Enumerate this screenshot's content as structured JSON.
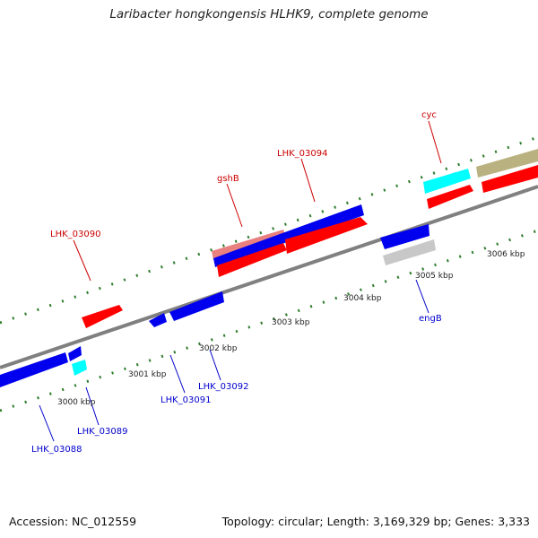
{
  "title": "Laribacter hongkongensis HLHK9, complete genome",
  "footer": {
    "accession": "Accession: NC_012559",
    "summary": "Topology: circular; Length: 3,169,329 bp; Genes: 3,333"
  },
  "colors": {
    "backbone": "#808080",
    "tick": "#2e7d2e",
    "red": "#ff0000",
    "blue": "#0000ee",
    "cyan": "#00ffff",
    "gray": "#c8c8c8",
    "olive": "#b9b280",
    "pink": "#e88080",
    "label_red": "#cc0000",
    "label_blue": "#0000cc"
  },
  "scale_labels": [
    "3000 kbp",
    "3001 kbp",
    "3002 kbp",
    "3003 kbp",
    "3004 kbp",
    "3005 kbp",
    "3006 kbp"
  ],
  "gene_labels": [
    {
      "text": "LHK_03090",
      "color": "red"
    },
    {
      "text": "gshB",
      "color": "red"
    },
    {
      "text": "LHK_03094",
      "color": "red"
    },
    {
      "text": "cyc",
      "color": "red"
    },
    {
      "text": "engB",
      "color": "blue"
    },
    {
      "text": "LHK_03092",
      "color": "blue"
    },
    {
      "text": "LHK_03091",
      "color": "blue"
    },
    {
      "text": "LHK_03089",
      "color": "blue"
    },
    {
      "text": "LHK_03088",
      "color": "blue"
    }
  ]
}
